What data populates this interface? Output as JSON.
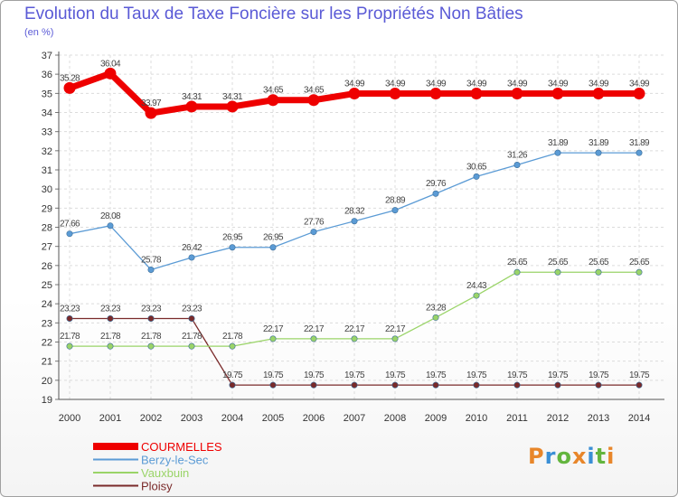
{
  "header": {
    "title": "Evolution du Taux de Taxe Foncière sur les Propriétés Non Bâties",
    "unit": "(en %)"
  },
  "logo": {
    "text": "Proxiti",
    "colors": [
      "#e8862a",
      "#3a8fd6",
      "#63b53e",
      "#e8862a",
      "#3a8fd6",
      "#63b53e",
      "#e8862a"
    ]
  },
  "chart_data": {
    "type": "line",
    "title": "Evolution du Taux de Taxe Foncière sur les Propriétés Non Bâties",
    "ylabel": "(en %)",
    "ylim": [
      19,
      37
    ],
    "yticks": [
      19,
      20,
      21,
      22,
      23,
      24,
      25,
      26,
      27,
      28,
      29,
      30,
      31,
      32,
      33,
      34,
      35,
      36,
      37
    ],
    "x": [
      "2000",
      "2001",
      "2002",
      "2003",
      "2004",
      "2005",
      "2006",
      "2007",
      "2008",
      "2009",
      "2010",
      "2011",
      "2012",
      "2013",
      "2014"
    ],
    "grid": true,
    "legend": "bottom-left",
    "series": [
      {
        "name": "COURMELLES",
        "color": "#ee0000",
        "values": [
          35.28,
          36.04,
          33.97,
          34.31,
          34.31,
          34.65,
          34.65,
          34.99,
          34.99,
          34.99,
          34.99,
          34.99,
          34.99,
          34.99,
          34.99
        ],
        "labels": [
          "35.28",
          "36.04",
          "33.97",
          "34.31",
          "34.31",
          "34.65",
          "34.65",
          "34.99",
          "34.99",
          "34.99",
          "34.99",
          "34.99",
          "34.99",
          "34.99",
          "34.99"
        ]
      },
      {
        "name": "Berzy-le-Sec",
        "color": "#5b9bd5",
        "values": [
          27.66,
          28.08,
          25.78,
          26.42,
          26.95,
          26.95,
          27.76,
          28.32,
          28.89,
          29.76,
          30.65,
          31.26,
          31.89,
          31.89,
          31.89
        ],
        "labels": [
          "27.66",
          "28.08",
          "25.78",
          "26.42",
          "26.95",
          "26.95",
          "27.76",
          "28.32",
          "28.89",
          "29.76",
          "30.65",
          "31.26",
          "31.89",
          "31.89",
          "31.89"
        ]
      },
      {
        "name": "Vauxbuin",
        "color": "#9ad468",
        "values": [
          21.78,
          21.78,
          21.78,
          21.78,
          21.78,
          22.17,
          22.17,
          22.17,
          22.17,
          23.28,
          24.43,
          25.65,
          25.65,
          25.65,
          25.65
        ],
        "labels": [
          "21.78",
          "21.78",
          "21.78",
          "21.78",
          "21.78",
          "22.17",
          "22.17",
          "22.17",
          "22.17",
          "23.28",
          "24.43",
          "25.65",
          "25.65",
          "25.65",
          "25.65"
        ]
      },
      {
        "name": "Ploisy",
        "color": "#7a2a2a",
        "values": [
          23.23,
          23.23,
          23.23,
          23.23,
          19.75,
          19.75,
          19.75,
          19.75,
          19.75,
          19.75,
          19.75,
          19.75,
          19.75,
          19.75,
          19.75
        ],
        "labels": [
          "23.23",
          "23.23",
          "23.23",
          "23.23",
          "19.75",
          "19.75",
          "19.75",
          "19.75",
          "19.75",
          "19.75",
          "19.75",
          "19.75",
          "19.75",
          "19.75",
          "19.75"
        ]
      }
    ]
  }
}
